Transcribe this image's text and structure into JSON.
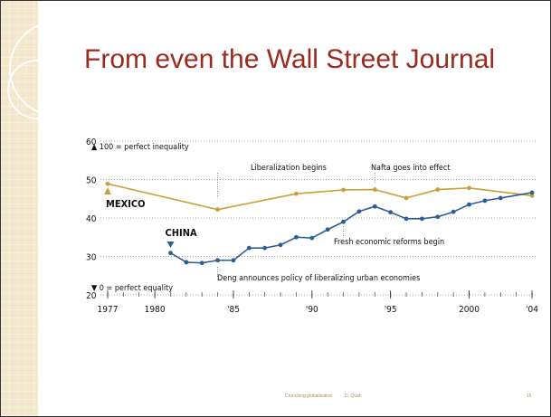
{
  "slide": {
    "title": "From even the Wall Street Journal",
    "footer_left": "Crunching globalisation",
    "footer_author": "D. Quah",
    "page_number": "16"
  },
  "colors": {
    "title": "#9c2a1f",
    "mexico": "#c9a03a",
    "china": "#2e5e94",
    "side_strip": "#f3e7cc"
  },
  "chart_data": {
    "type": "line",
    "xlim": [
      1977,
      2004
    ],
    "ylim": [
      20,
      60
    ],
    "x_ticks": [
      1977,
      1980,
      1985,
      1990,
      1995,
      2000,
      2004
    ],
    "x_tick_labels": [
      "1977",
      "1980",
      "'85",
      "'90",
      "'95",
      "2000",
      "'04"
    ],
    "y_ticks": [
      20,
      30,
      40,
      50,
      60
    ],
    "grid": "horizontal dotted",
    "series": [
      {
        "name": "MEXICO",
        "color": "#c9a03a",
        "points": [
          [
            1977,
            48.9
          ],
          [
            1984,
            42.2
          ],
          [
            1989,
            46.3
          ],
          [
            1992,
            47.3
          ],
          [
            1994,
            47.4
          ],
          [
            1996,
            45.2
          ],
          [
            1998,
            47.4
          ],
          [
            2000,
            47.8
          ],
          [
            2004,
            45.8
          ]
        ]
      },
      {
        "name": "CHINA",
        "color": "#2e5e94",
        "points": [
          [
            1981,
            30.9
          ],
          [
            1982,
            28.5
          ],
          [
            1983,
            28.3
          ],
          [
            1984,
            29.0
          ],
          [
            1985,
            29.0
          ],
          [
            1986,
            32.2
          ],
          [
            1987,
            32.2
          ],
          [
            1988,
            33.0
          ],
          [
            1989,
            35.0
          ],
          [
            1990,
            34.8
          ],
          [
            1991,
            37.0
          ],
          [
            1992,
            39.0
          ],
          [
            1993,
            41.7
          ],
          [
            1994,
            43.0
          ],
          [
            1995,
            41.5
          ],
          [
            1996,
            39.8
          ],
          [
            1997,
            39.8
          ],
          [
            1998,
            40.3
          ],
          [
            1999,
            41.6
          ],
          [
            2000,
            43.5
          ],
          [
            2001,
            44.5
          ],
          [
            2002,
            45.2
          ],
          [
            2004,
            46.6
          ]
        ]
      }
    ],
    "annotations": [
      {
        "text": "▲ 100 = perfect inequality"
      },
      {
        "text": "▼ 0 = perfect equality"
      },
      {
        "text": "Liberalization begins",
        "x": 1984
      },
      {
        "text": "Nafta goes into effect",
        "x": 1994
      },
      {
        "text": "Fresh economic reforms begin",
        "x": 1992
      },
      {
        "text": "Deng announces policy of liberalizing urban economies",
        "x": 1984
      }
    ]
  }
}
